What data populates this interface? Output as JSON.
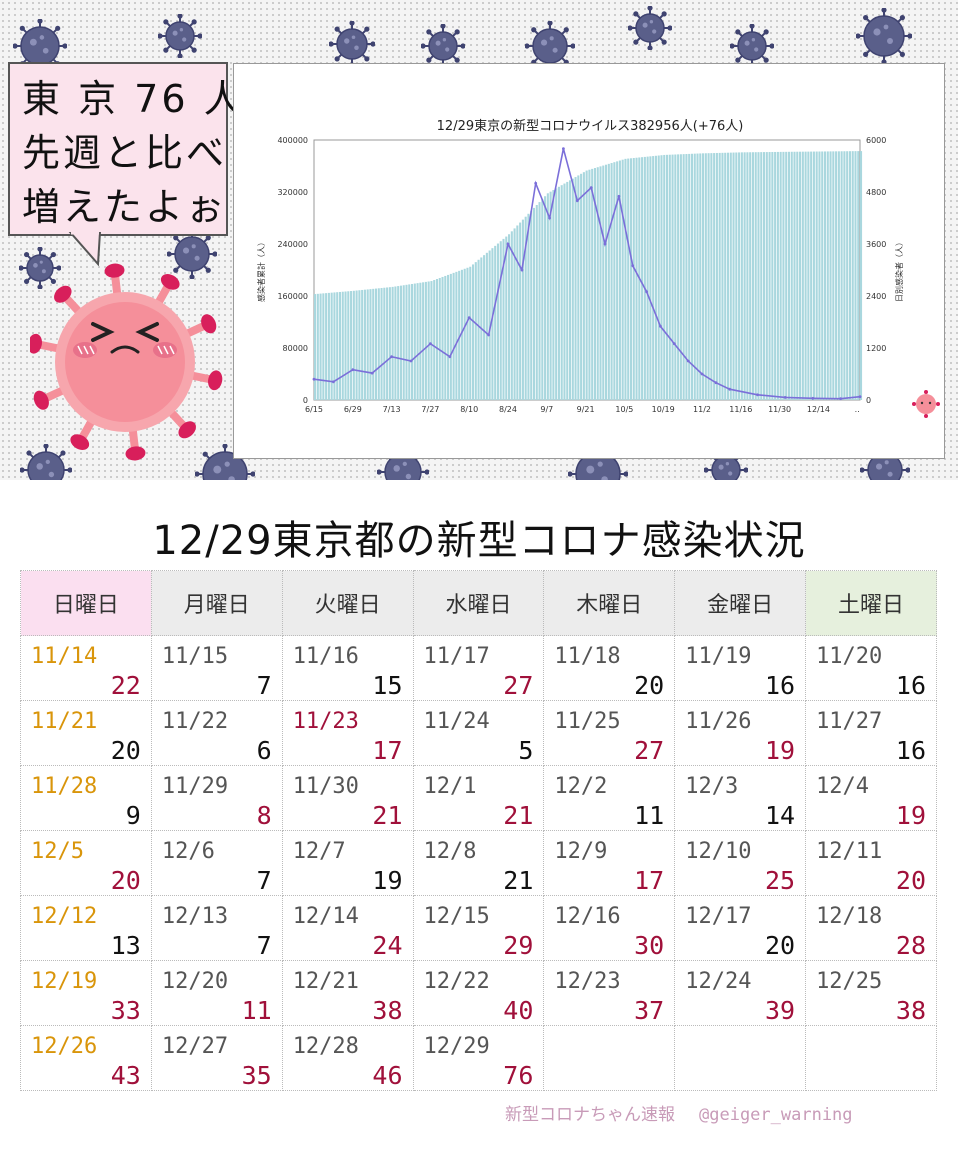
{
  "speech": {
    "line1": "東 京 76 人",
    "line2": "先週と比べ",
    "line3": "増えたよぉ"
  },
  "chart_data": {
    "type": "bar+line",
    "title": "12/29東京の新型コロナウイルス382956人(+76人)",
    "ylabel_left": "感染者累計（人）",
    "ylabel_right": "日別感染者（人）",
    "x_ticks": [
      "6/15",
      "6/29",
      "7/13",
      "7/27",
      "8/10",
      "8/24",
      "9/7",
      "9/21",
      "10/5",
      "10/19",
      "11/2",
      "11/16",
      "11/30",
      "12/14",
      ".."
    ],
    "y_left_ticks": [
      "0",
      "80000",
      "160000",
      "240000",
      "320000",
      "400000"
    ],
    "y_right_ticks": [
      "0",
      "1200",
      "2400",
      "3600",
      "4800",
      "6000"
    ],
    "ylim_left": [
      0,
      400000
    ],
    "ylim_right": [
      0,
      6000
    ],
    "series": [
      {
        "name": "累計",
        "type": "bar",
        "color": "#a9d7de",
        "points": [
          [
            0,
            163000
          ],
          [
            14,
            168000
          ],
          [
            28,
            174000
          ],
          [
            42,
            183000
          ],
          [
            56,
            205000
          ],
          [
            70,
            255000
          ],
          [
            84,
            318000
          ],
          [
            98,
            353000
          ],
          [
            112,
            371000
          ],
          [
            126,
            377000
          ],
          [
            140,
            379500
          ],
          [
            154,
            381000
          ],
          [
            168,
            381700
          ],
          [
            182,
            382300
          ],
          [
            197,
            382956
          ]
        ]
      },
      {
        "name": "日別",
        "type": "line",
        "color": "#7b6fd9",
        "points": [
          [
            0,
            480
          ],
          [
            7,
            420
          ],
          [
            14,
            700
          ],
          [
            21,
            620
          ],
          [
            28,
            1000
          ],
          [
            35,
            900
          ],
          [
            42,
            1300
          ],
          [
            49,
            1000
          ],
          [
            56,
            1900
          ],
          [
            63,
            1500
          ],
          [
            70,
            3600
          ],
          [
            75,
            3000
          ],
          [
            80,
            5000
          ],
          [
            85,
            4200
          ],
          [
            90,
            5800
          ],
          [
            95,
            4600
          ],
          [
            100,
            4900
          ],
          [
            105,
            3600
          ],
          [
            110,
            4700
          ],
          [
            115,
            3100
          ],
          [
            120,
            2500
          ],
          [
            125,
            1700
          ],
          [
            130,
            1300
          ],
          [
            135,
            900
          ],
          [
            140,
            600
          ],
          [
            145,
            400
          ],
          [
            150,
            250
          ],
          [
            160,
            120
          ],
          [
            170,
            60
          ],
          [
            180,
            40
          ],
          [
            190,
            30
          ],
          [
            197,
            76
          ]
        ]
      }
    ]
  },
  "calendar": {
    "title": "12/29東京都の新型コロナ感染状況",
    "headers": [
      "日曜日",
      "月曜日",
      "火曜日",
      "水曜日",
      "木曜日",
      "金曜日",
      "土曜日"
    ],
    "weeks": [
      [
        {
          "d": "11/14",
          "n": "22",
          "dc": "orange",
          "up": true
        },
        {
          "d": "11/15",
          "n": "7"
        },
        {
          "d": "11/16",
          "n": "15"
        },
        {
          "d": "11/17",
          "n": "27",
          "up": true
        },
        {
          "d": "11/18",
          "n": "20"
        },
        {
          "d": "11/19",
          "n": "16"
        },
        {
          "d": "11/20",
          "n": "16"
        }
      ],
      [
        {
          "d": "11/21",
          "n": "20",
          "dc": "orange"
        },
        {
          "d": "11/22",
          "n": "6"
        },
        {
          "d": "11/23",
          "n": "17",
          "dc": "red",
          "up": true
        },
        {
          "d": "11/24",
          "n": "5"
        },
        {
          "d": "11/25",
          "n": "27",
          "up": true
        },
        {
          "d": "11/26",
          "n": "19",
          "up": true
        },
        {
          "d": "11/27",
          "n": "16"
        }
      ],
      [
        {
          "d": "11/28",
          "n": "9",
          "dc": "orange"
        },
        {
          "d": "11/29",
          "n": "8",
          "up": true
        },
        {
          "d": "11/30",
          "n": "21",
          "up": true
        },
        {
          "d": "12/1",
          "n": "21",
          "up": true
        },
        {
          "d": "12/2",
          "n": "11"
        },
        {
          "d": "12/3",
          "n": "14"
        },
        {
          "d": "12/4",
          "n": "19",
          "up": true
        }
      ],
      [
        {
          "d": "12/5",
          "n": "20",
          "dc": "orange",
          "up": true
        },
        {
          "d": "12/6",
          "n": "7"
        },
        {
          "d": "12/7",
          "n": "19"
        },
        {
          "d": "12/8",
          "n": "21"
        },
        {
          "d": "12/9",
          "n": "17",
          "up": true
        },
        {
          "d": "12/10",
          "n": "25",
          "up": true
        },
        {
          "d": "12/11",
          "n": "20",
          "up": true
        }
      ],
      [
        {
          "d": "12/12",
          "n": "13",
          "dc": "orange"
        },
        {
          "d": "12/13",
          "n": "7"
        },
        {
          "d": "12/14",
          "n": "24",
          "up": true
        },
        {
          "d": "12/15",
          "n": "29",
          "up": true
        },
        {
          "d": "12/16",
          "n": "30",
          "up": true
        },
        {
          "d": "12/17",
          "n": "20"
        },
        {
          "d": "12/18",
          "n": "28",
          "up": true
        }
      ],
      [
        {
          "d": "12/19",
          "n": "33",
          "dc": "orange",
          "up": true
        },
        {
          "d": "12/20",
          "n": "11",
          "up": true
        },
        {
          "d": "12/21",
          "n": "38",
          "up": true
        },
        {
          "d": "12/22",
          "n": "40",
          "up": true
        },
        {
          "d": "12/23",
          "n": "37",
          "up": true
        },
        {
          "d": "12/24",
          "n": "39",
          "up": true
        },
        {
          "d": "12/25",
          "n": "38",
          "up": true
        }
      ],
      [
        {
          "d": "12/26",
          "n": "43",
          "dc": "orange",
          "up": true
        },
        {
          "d": "12/27",
          "n": "35",
          "up": true
        },
        {
          "d": "12/28",
          "n": "46",
          "up": true
        },
        {
          "d": "12/29",
          "n": "76",
          "up": true
        },
        null,
        null,
        null
      ]
    ]
  },
  "footer": {
    "brand": "新型コロナちゃん速報",
    "handle": "@geiger_warning"
  },
  "colors": {
    "virus_navy": "#5a5f8a",
    "mascot_pink": "#f58f9a",
    "mascot_spike": "#d81f5b",
    "number_up": "#a0103a",
    "sunday_date": "#d9950a"
  }
}
